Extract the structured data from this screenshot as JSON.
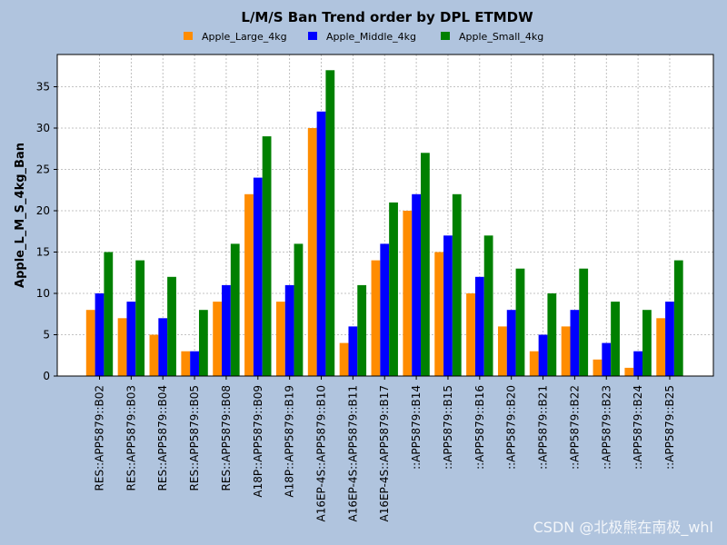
{
  "watermark": "CSDN @北极熊在南极_whl",
  "chart_data": {
    "type": "bar",
    "title": "L/M/S Ban Trend order by DPL ETMDW",
    "xlabel": "",
    "ylabel": "Apple_L_M_S_4kg_Ban",
    "ylim": [
      0,
      38.9
    ],
    "yticks": [
      0,
      5,
      10,
      15,
      20,
      25,
      30,
      35
    ],
    "grid": true,
    "legend_position": "top-center",
    "categories": [
      "RES::APP5879::B02",
      "RES::APP5879::B03",
      "RES::APP5879::B04",
      "RES::APP5879::B05",
      "RES::APP5879::B08",
      "A18P::APP5879::B09",
      "A18P::APP5879::B19",
      "A16EP-4S::APP5879::B10",
      "A16EP-4S::APP5879::B11",
      "A16EP-4S::APP5879::B17",
      "::APP5879::B14",
      "::APP5879::B15",
      "::APP5879::B16",
      "::APP5879::B20",
      "::APP5879::B21",
      "::APP5879::B22",
      "::APP5879::B23",
      "::APP5879::B24",
      "::APP5879::B25"
    ],
    "series": [
      {
        "name": "Apple_Large_4kg",
        "color": "#ff8c00",
        "values": [
          8,
          7,
          5,
          3,
          9,
          22,
          9,
          30,
          4,
          14,
          20,
          15,
          10,
          6,
          3,
          6,
          2,
          1,
          7
        ]
      },
      {
        "name": "Apple_Middle_4kg",
        "color": "#0000ff",
        "values": [
          10,
          9,
          7,
          3,
          11,
          24,
          11,
          32,
          6,
          16,
          22,
          17,
          12,
          8,
          5,
          8,
          4,
          3,
          9
        ]
      },
      {
        "name": "Apple_Small_4kg",
        "color": "#008000",
        "values": [
          15,
          14,
          12,
          8,
          16,
          29,
          16,
          37,
          11,
          21,
          27,
          22,
          17,
          13,
          10,
          13,
          9,
          8,
          14
        ]
      }
    ]
  }
}
